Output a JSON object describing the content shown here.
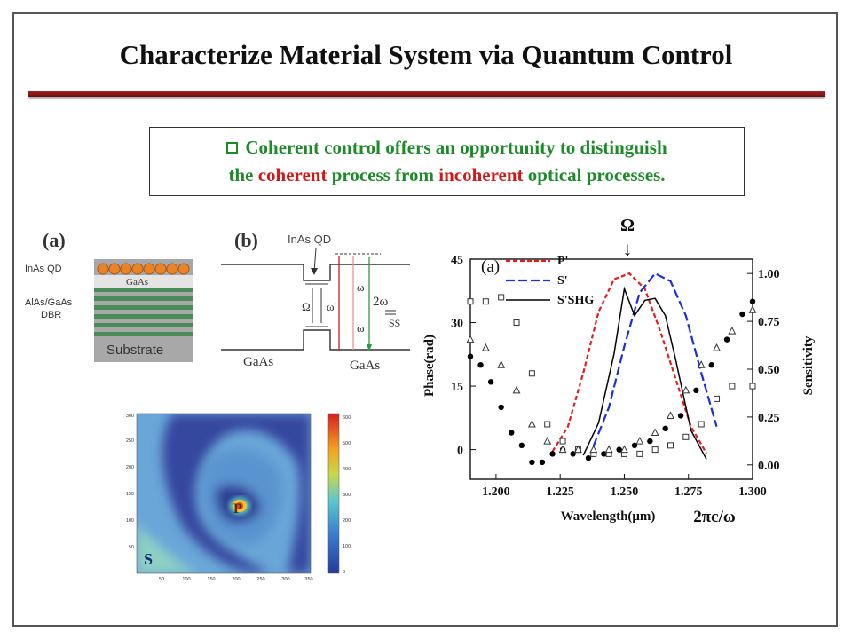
{
  "slide": {
    "title": "Characterize Material System via Quantum Control"
  },
  "callout": {
    "line1": "Coherent control offers an opportunity to distinguish",
    "line2_pre": "the",
    "line2_coherent": "coherent",
    "line2_mid": "process from",
    "line2_incoherent": "incoherent",
    "line2_post": "optical processes."
  },
  "panel_a": {
    "label": "(a)",
    "inas_qd": "InAs QD",
    "gaas": "GaAs",
    "dbr_line1": "AlAs/GaAs",
    "dbr_line2": "DBR",
    "substrate": "Substrate"
  },
  "panel_b": {
    "label": "(b)",
    "inas_qd": "InAs QD",
    "gaas_left": "GaAs",
    "gaas_right": "GaAs",
    "omega_big": "Ω",
    "omega_prime": "ω'",
    "omega_top": "ω",
    "omega_bottom": "ω",
    "two_omega": "2ω",
    "ss": "SS"
  },
  "map": {
    "x_ticks": [
      "50",
      "100",
      "150",
      "200",
      "250",
      "300",
      "350"
    ],
    "y_ticks": [
      "300",
      "250",
      "200",
      "150",
      "100",
      "50"
    ],
    "colorbar_ticks": [
      "600",
      "500",
      "400",
      "300",
      "200",
      "100",
      "0"
    ],
    "label_p": "P",
    "label_s": "S"
  },
  "plot": {
    "omega_marker": "Ω",
    "arrow": "↓",
    "bottom_annotation": "2πc/ω"
  },
  "chart_data": {
    "type": "scatter",
    "panel_label": "(a)",
    "xlabel": "Wavelength(μm)",
    "ylabel_left": "Phase(rad)",
    "ylabel_right": "Sensitivity",
    "xlim": [
      1.19,
      1.3
    ],
    "ylim_left": [
      -7,
      45
    ],
    "ylim_right": [
      -0.075,
      1.075
    ],
    "x_ticks": [
      "1.200",
      "1.225",
      "1.250",
      "1.275",
      "1.300"
    ],
    "y_ticks_left": [
      "0",
      "15",
      "30",
      "45"
    ],
    "y_ticks_right": [
      "0.00",
      "0.25",
      "0.50",
      "0.75",
      "1.00"
    ],
    "legend": [
      "P'",
      "S'",
      "S'SHG"
    ],
    "series": [
      {
        "name": "P'",
        "axis": "right",
        "style": "dashed",
        "color": "#e02020",
        "x": [
          1.222,
          1.228,
          1.234,
          1.24,
          1.246,
          1.252,
          1.258,
          1.264,
          1.27,
          1.276,
          1.282
        ],
        "y": [
          0.07,
          0.2,
          0.48,
          0.8,
          0.97,
          1.0,
          0.92,
          0.7,
          0.45,
          0.2,
          0.06
        ]
      },
      {
        "name": "S'",
        "axis": "right",
        "style": "long-dash",
        "color": "#1c2ed8",
        "x": [
          1.238,
          1.244,
          1.25,
          1.256,
          1.262,
          1.268,
          1.274,
          1.28,
          1.286
        ],
        "y": [
          0.1,
          0.3,
          0.62,
          0.9,
          1.0,
          0.96,
          0.78,
          0.48,
          0.2
        ]
      },
      {
        "name": "S'SHG",
        "axis": "right",
        "style": "solid",
        "color": "#000000",
        "x": [
          1.234,
          1.24,
          1.246,
          1.25,
          1.254,
          1.258,
          1.262,
          1.266,
          1.27,
          1.276,
          1.282
        ],
        "y": [
          0.05,
          0.22,
          0.58,
          0.92,
          0.78,
          0.86,
          0.87,
          0.78,
          0.55,
          0.18,
          0.03
        ]
      },
      {
        "name": "phase-circles-filled",
        "axis": "left",
        "color": "#000000",
        "x": [
          1.19,
          1.194,
          1.198,
          1.202,
          1.206,
          1.21,
          1.214,
          1.218,
          1.222,
          1.226,
          1.23,
          1.236,
          1.242,
          1.248,
          1.254,
          1.26,
          1.266,
          1.272,
          1.278,
          1.284,
          1.29,
          1.296,
          1.3
        ],
        "y": [
          22,
          20,
          16,
          10,
          4,
          1,
          -3,
          -3,
          -1,
          0,
          -1,
          -2,
          -1,
          0,
          1,
          2,
          5,
          8,
          14,
          20,
          26,
          32,
          35
        ]
      },
      {
        "name": "phase-squares-open",
        "axis": "left",
        "color": "#333333",
        "x": [
          1.19,
          1.196,
          1.202,
          1.208,
          1.214,
          1.22,
          1.226,
          1.232,
          1.238,
          1.244,
          1.25,
          1.256,
          1.262,
          1.268,
          1.274,
          1.28,
          1.286,
          1.292,
          1.3
        ],
        "y": [
          35,
          35,
          36,
          30,
          18,
          6,
          2,
          0,
          -1,
          -1,
          -1,
          -1,
          0,
          1,
          3,
          6,
          12,
          15,
          15
        ]
      },
      {
        "name": "phase-triangles-open",
        "axis": "left",
        "color": "#333333",
        "x": [
          1.19,
          1.196,
          1.202,
          1.208,
          1.214,
          1.22,
          1.226,
          1.232,
          1.238,
          1.244,
          1.25,
          1.256,
          1.262,
          1.268,
          1.274,
          1.28,
          1.286,
          1.292,
          1.3
        ],
        "y": [
          26,
          24,
          20,
          14,
          6,
          2,
          0,
          0,
          0,
          0,
          0,
          2,
          4,
          8,
          14,
          20,
          24,
          28,
          33
        ]
      }
    ]
  }
}
